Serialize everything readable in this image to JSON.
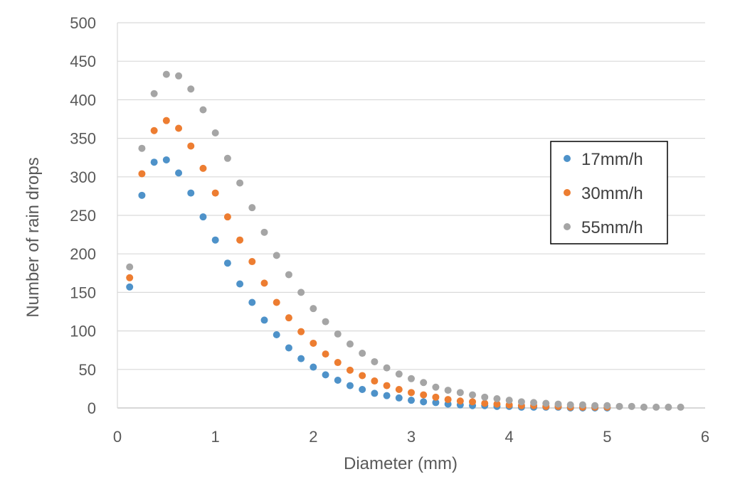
{
  "chart_data": {
    "type": "scatter",
    "title": "",
    "xlabel": "Diameter (mm)",
    "ylabel": "Number of rain drops",
    "xlim": [
      0,
      6
    ],
    "ylim": [
      0,
      500
    ],
    "x_ticks": [
      0,
      1,
      2,
      3,
      4,
      5,
      6
    ],
    "y_ticks": [
      0,
      50,
      100,
      150,
      200,
      250,
      300,
      350,
      400,
      450,
      500
    ],
    "grid": "horizontal",
    "legend_position": "right",
    "series": [
      {
        "name": "17mm/h",
        "color": "#4e92c9",
        "x": [
          0.125,
          0.25,
          0.375,
          0.5,
          0.625,
          0.75,
          0.875,
          1.0,
          1.125,
          1.25,
          1.375,
          1.5,
          1.625,
          1.75,
          1.875,
          2.0,
          2.125,
          2.25,
          2.375,
          2.5,
          2.625,
          2.75,
          2.875,
          3.0,
          3.125,
          3.25,
          3.375,
          3.5,
          3.625,
          3.75,
          3.875,
          4.0,
          4.125,
          4.25,
          4.375,
          4.5,
          4.625,
          4.75,
          4.875,
          5.0
        ],
        "y": [
          157,
          276,
          319,
          322,
          305,
          279,
          248,
          218,
          188,
          161,
          137,
          114,
          95,
          78,
          64,
          53,
          43,
          36,
          29,
          24,
          19,
          16,
          13,
          10,
          8,
          7,
          5,
          4,
          3,
          3,
          2,
          2,
          1,
          1,
          1,
          1,
          0,
          0,
          0,
          0
        ]
      },
      {
        "name": "30mm/h",
        "color": "#ed7d31",
        "x": [
          0.125,
          0.25,
          0.375,
          0.5,
          0.625,
          0.75,
          0.875,
          1.0,
          1.125,
          1.25,
          1.375,
          1.5,
          1.625,
          1.75,
          1.875,
          2.0,
          2.125,
          2.25,
          2.375,
          2.5,
          2.625,
          2.75,
          2.875,
          3.0,
          3.125,
          3.25,
          3.375,
          3.5,
          3.625,
          3.75,
          3.875,
          4.0,
          4.125,
          4.25,
          4.375,
          4.5,
          4.625,
          4.75,
          4.875,
          5.0
        ],
        "y": [
          169,
          304,
          360,
          373,
          363,
          340,
          311,
          279,
          248,
          218,
          190,
          162,
          137,
          117,
          99,
          84,
          70,
          59,
          49,
          42,
          35,
          29,
          24,
          20,
          17,
          14,
          11,
          9,
          8,
          6,
          5,
          4,
          3,
          3,
          2,
          2,
          1,
          1,
          1,
          1
        ]
      },
      {
        "name": "55mm/h",
        "color": "#a5a5a5",
        "x": [
          0.125,
          0.25,
          0.375,
          0.5,
          0.625,
          0.75,
          0.875,
          1.0,
          1.125,
          1.25,
          1.375,
          1.5,
          1.625,
          1.75,
          1.875,
          2.0,
          2.125,
          2.25,
          2.375,
          2.5,
          2.625,
          2.75,
          2.875,
          3.0,
          3.125,
          3.25,
          3.375,
          3.5,
          3.625,
          3.75,
          3.875,
          4.0,
          4.125,
          4.25,
          4.375,
          4.5,
          4.625,
          4.75,
          4.875,
          5.0,
          5.125,
          5.25,
          5.375,
          5.5,
          5.625,
          5.75
        ],
        "y": [
          183,
          337,
          408,
          433,
          431,
          414,
          387,
          357,
          324,
          292,
          260,
          228,
          198,
          173,
          150,
          129,
          112,
          96,
          83,
          71,
          60,
          52,
          44,
          38,
          33,
          27,
          23,
          20,
          17,
          14,
          12,
          10,
          8,
          7,
          6,
          5,
          4,
          4,
          3,
          3,
          2,
          2,
          1,
          1,
          1,
          1
        ]
      }
    ]
  }
}
